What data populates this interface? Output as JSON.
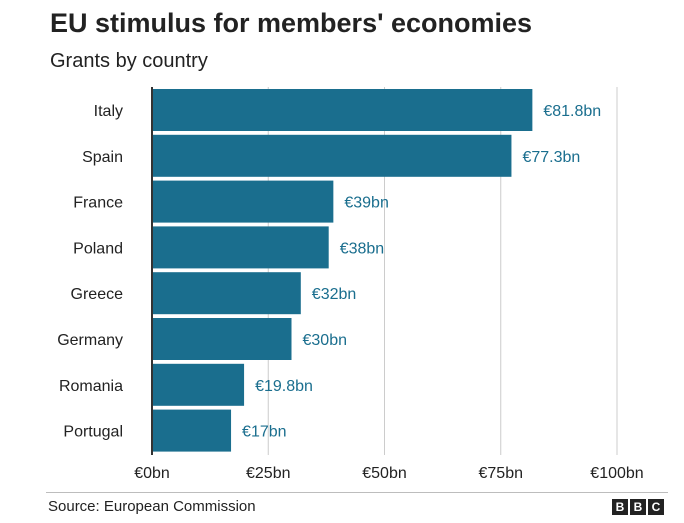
{
  "title": "EU stimulus for members' economies",
  "subtitle": "Grants by country",
  "source": "Source: European Commission",
  "logo_letters": [
    "B",
    "B",
    "C"
  ],
  "colors": {
    "bar": "#1a6e8e",
    "value_label": "#1a6e8e",
    "grid": "#cccccc",
    "axis": "#333333",
    "text": "#222222"
  },
  "chart_data": {
    "type": "bar",
    "orientation": "horizontal",
    "categories": [
      "Italy",
      "Spain",
      "France",
      "Poland",
      "Greece",
      "Germany",
      "Romania",
      "Portugal"
    ],
    "values": [
      81.8,
      77.3,
      39,
      38,
      32,
      30,
      19.8,
      17
    ],
    "value_labels": [
      "€81.8bn",
      "€77.3bn",
      "€39bn",
      "€38bn",
      "€32bn",
      "€30bn",
      "€19.8bn",
      "€17bn"
    ],
    "xlim": [
      0,
      100
    ],
    "x_ticks": [
      0,
      25,
      50,
      75,
      100
    ],
    "x_tick_labels": [
      "€0bn",
      "€25bn",
      "€50bn",
      "€75bn",
      "€100bn"
    ],
    "grid": true
  }
}
